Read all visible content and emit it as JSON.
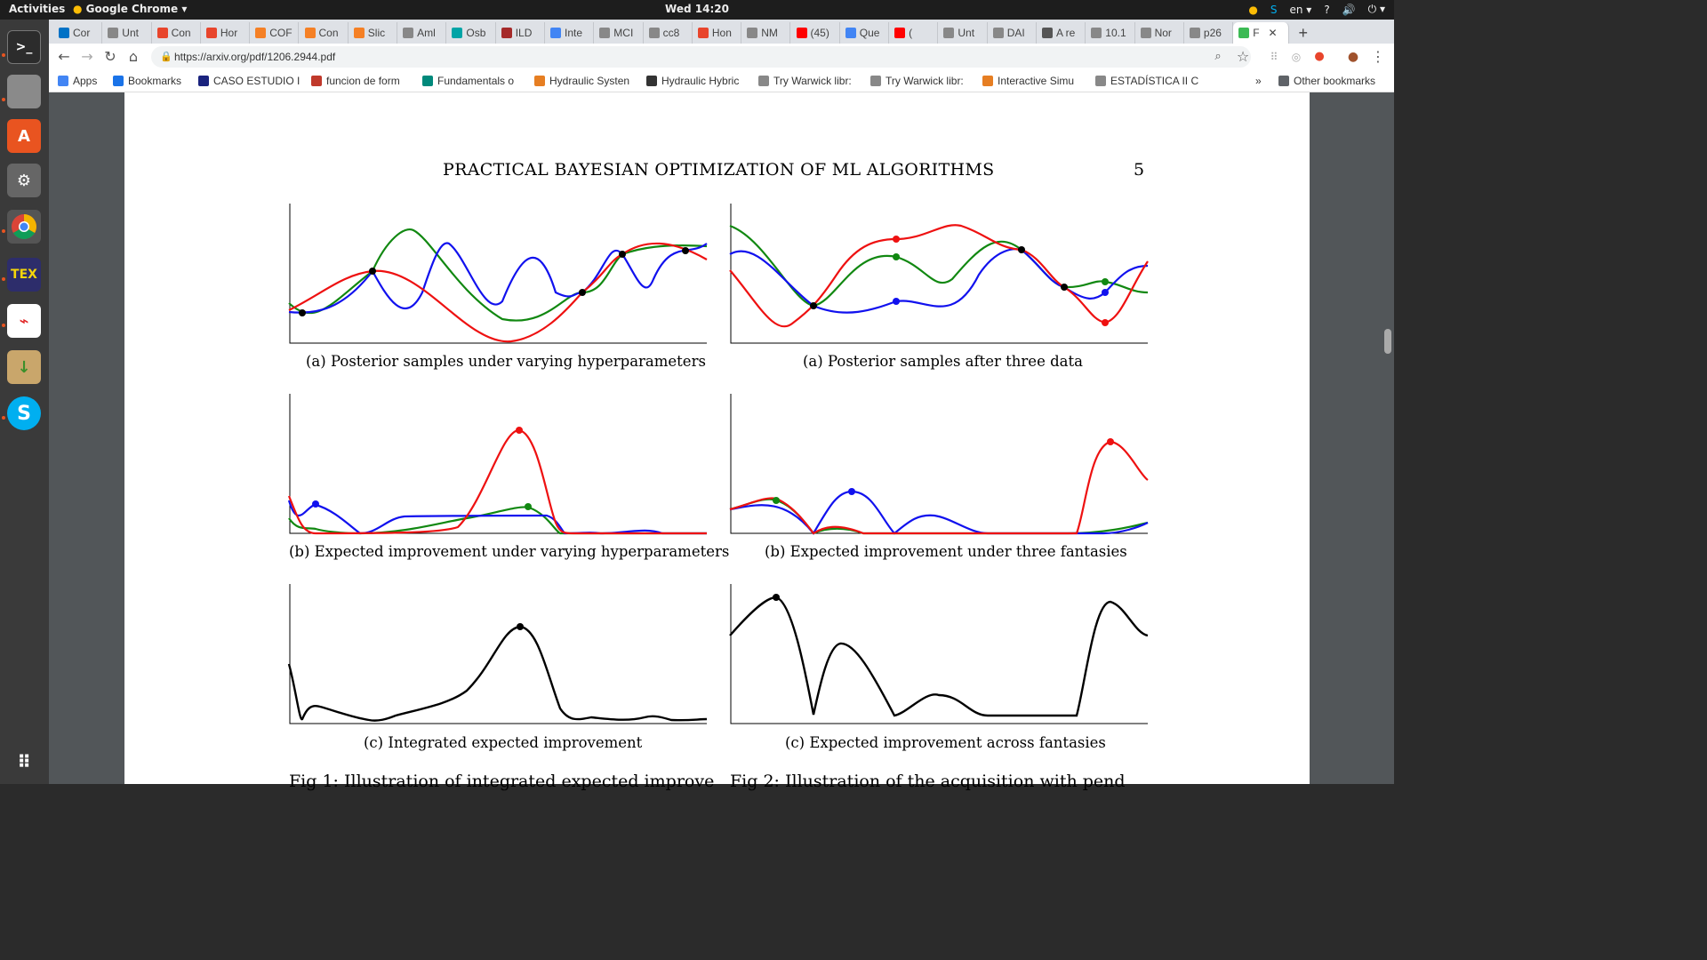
{
  "topbar": {
    "activities": "Activities",
    "app_name": "Google Chrome",
    "clock": "Wed 14:20",
    "lang": "en"
  },
  "dock": {
    "items": [
      "terminal-icon",
      "files-icon",
      "software-center-icon",
      "settings-icon",
      "chrome-icon",
      "texmaker-icon",
      "pdf-reader-icon",
      "archive-icon",
      "skype-icon",
      "app-grid-icon"
    ]
  },
  "browser": {
    "tabs": [
      {
        "label": "Cor",
        "color": "#0072c6"
      },
      {
        "label": "Unt",
        "color": "#888888"
      },
      {
        "label": "Con",
        "color": "#e8452c"
      },
      {
        "label": "Hor",
        "color": "#e8452c"
      },
      {
        "label": "COF",
        "color": "#f58025"
      },
      {
        "label": "Con",
        "color": "#f58025"
      },
      {
        "label": "Slic",
        "color": "#f58025"
      },
      {
        "label": "Aml",
        "color": "#888888"
      },
      {
        "label": "Osb",
        "color": "#00a4a6"
      },
      {
        "label": "ILD",
        "color": "#a52a2a"
      },
      {
        "label": "Inte",
        "color": "#4285f4"
      },
      {
        "label": "MCI",
        "color": "#888888"
      },
      {
        "label": "cc8",
        "color": "#888888"
      },
      {
        "label": "Hon",
        "color": "#e8452c"
      },
      {
        "label": "NM",
        "color": "#888888"
      },
      {
        "label": "(45)",
        "color": "#ff0000"
      },
      {
        "label": "Que",
        "color": "#4285f4"
      },
      {
        "label": "(",
        "color": "#ff0000"
      },
      {
        "label": "Unt",
        "color": "#888888"
      },
      {
        "label": "DAI",
        "color": "#888888"
      },
      {
        "label": "A re",
        "color": "#555555"
      },
      {
        "label": "10.1",
        "color": "#888888"
      },
      {
        "label": "Nor",
        "color": "#888888"
      },
      {
        "label": "p26",
        "color": "#888888"
      },
      {
        "label": "F",
        "color": "#3cba54"
      }
    ],
    "new_tab": "+",
    "url": "https://arxiv.org/pdf/1206.2944.pdf",
    "bookmarks": [
      {
        "label": "Apps",
        "color": "#4285f4"
      },
      {
        "label": "Bookmarks",
        "color": "#1a73e8"
      },
      {
        "label": "CASO ESTUDIO I",
        "color": "#1a237e"
      },
      {
        "label": "funcion de form",
        "color": "#c0392b"
      },
      {
        "label": "Fundamentals o",
        "color": "#00897b"
      },
      {
        "label": "Hydraulic Systen",
        "color": "#e67e22"
      },
      {
        "label": "Hydraulic Hybric",
        "color": "#333333"
      },
      {
        "label": "Try Warwick libr:",
        "color": "#888888"
      },
      {
        "label": "Try Warwick libr:",
        "color": "#888888"
      },
      {
        "label": "Interactive Simu",
        "color": "#e67e22"
      },
      {
        "label": "ESTADÍSTICA II C",
        "color": "#888888"
      }
    ],
    "more_bookmarks": "»",
    "other_bookmarks": "Other bookmarks"
  },
  "paper": {
    "running_head": "PRACTICAL BAYESIAN OPTIMIZATION OF ML ALGORITHMS",
    "page_number": "5",
    "captions": {
      "l1": "(a) Posterior samples under varying hyperparameters",
      "r1": "(a) Posterior samples after three data",
      "l2": "(b) Expected improvement under varying hyperparameters",
      "r2": "(b) Expected improvement under three fantasies",
      "l3": "(c) Integrated expected improvement",
      "r3": "(c) Expected improvement across fantasies"
    },
    "fig_captions": {
      "left": "Fig 1: Illustration of integrated expected improve",
      "right": "Fig 2: Illustration of the acquisition with pend"
    }
  },
  "colors": {
    "red": "#ee1111",
    "green": "#118811",
    "blue": "#1111ee",
    "black": "#000000"
  }
}
